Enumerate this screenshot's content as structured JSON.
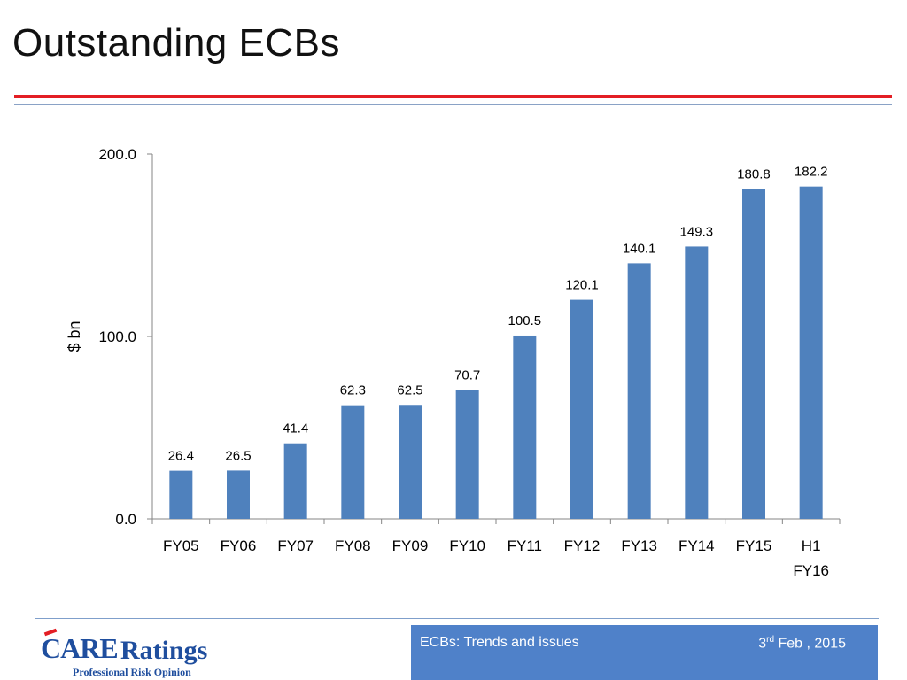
{
  "slide": {
    "title": "Outstanding ECBs",
    "footer_text": "ECBs: Trends and issues",
    "footer_date_day": "3",
    "footer_date_suffix": "rd",
    "footer_date_rest": " Feb , 2015",
    "logo_word1": "CARE",
    "logo_word2": "Ratings",
    "logo_tagline": "Professional Risk Opinion"
  },
  "chart_data": {
    "type": "bar",
    "categories": [
      "FY05",
      "FY06",
      "FY07",
      "FY08",
      "FY09",
      "FY10",
      "FY11",
      "FY12",
      "FY13",
      "FY14",
      "FY15",
      "H1 FY16"
    ],
    "values": [
      26.4,
      26.5,
      41.4,
      62.3,
      62.5,
      70.7,
      100.5,
      120.1,
      140.1,
      149.3,
      180.8,
      182.2
    ],
    "value_labels": [
      "26.4",
      "26.5",
      "41.4",
      "62.3",
      "62.5",
      "70.7",
      "100.5",
      "120.1",
      "140.1",
      "149.3",
      "180.8",
      "182.2"
    ],
    "ylabel": "$ bn",
    "ylim": [
      0,
      200
    ],
    "yticks": [
      "0.0",
      "100.0",
      "200.0"
    ],
    "grid": false,
    "bar_color": "#4f81bd"
  }
}
